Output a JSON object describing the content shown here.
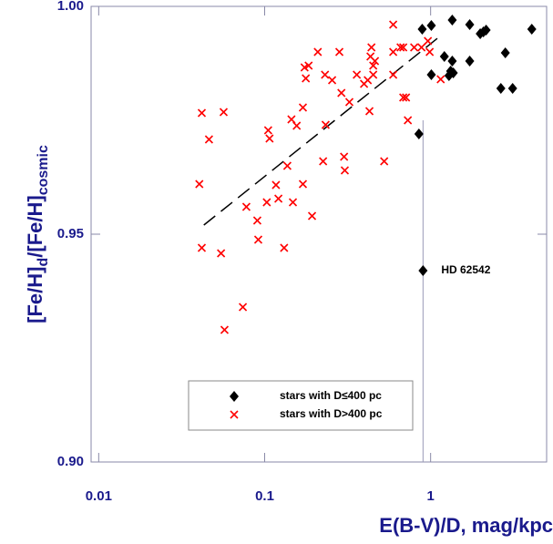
{
  "chart_data": {
    "type": "scatter",
    "x_label": "E(B-V)/D, mag/kpc",
    "y_label_parts": [
      "[Fe/H]",
      "d",
      "/[Fe/H]",
      "cosmic"
    ],
    "log_x": true,
    "xlim": [
      0.009,
      5
    ],
    "ylim": [
      0.9,
      1.0
    ],
    "xticks": [
      0.01,
      0.1,
      1
    ],
    "yticks": [
      {
        "value": 0.9,
        "label": "0.90"
      },
      {
        "value": 0.95,
        "label": "0.95"
      },
      {
        "value": 1.0,
        "label": "1.00"
      }
    ],
    "legend": "bottom-center",
    "series": [
      {
        "name": "stars with D≤400 pc",
        "color": "#000000",
        "marker": "diamond",
        "x": [
          0.89,
          1.35,
          1.72,
          1.99,
          2.08,
          2.16,
          1.21,
          1.35,
          1.32,
          1.37,
          1.29,
          1.01,
          1.72,
          2.65,
          3.12,
          2.82,
          4.07,
          0.85,
          0.9,
          1.01
        ],
        "y": [
          0.995,
          0.997,
          0.996,
          0.994,
          0.9944,
          0.9948,
          0.989,
          0.988,
          0.9858,
          0.9854,
          0.9848,
          0.985,
          0.988,
          0.982,
          0.982,
          0.9898,
          0.995,
          0.972,
          0.942,
          0.9958
        ]
      },
      {
        "name": "stars with D>400 pc",
        "color": "#ff0000",
        "marker": "x",
        "x": [
          0.0418,
          0.0566,
          0.0404,
          0.0418,
          0.0546,
          0.0462,
          0.0573,
          0.0739,
          0.0776,
          0.0903,
          0.0915,
          0.103,
          0.107,
          0.105,
          0.117,
          0.121,
          0.131,
          0.137,
          0.145,
          0.148,
          0.156,
          0.17,
          0.17,
          0.177,
          0.174,
          0.184,
          0.193,
          0.209,
          0.225,
          0.233,
          0.231,
          0.255,
          0.282,
          0.29,
          0.301,
          0.304,
          0.324,
          0.359,
          0.397,
          0.418,
          0.44,
          0.451,
          0.451,
          0.428,
          0.462,
          0.434,
          0.525,
          0.595,
          0.595,
          0.595,
          0.659,
          0.684,
          0.711,
          0.684,
          0.729,
          0.796,
          0.881,
          0.963,
          0.987,
          1.15
        ],
        "y": [
          0.9766,
          0.9768,
          0.961,
          0.947,
          0.9458,
          0.9708,
          0.929,
          0.934,
          0.956,
          0.953,
          0.9488,
          0.957,
          0.971,
          0.9728,
          0.9608,
          0.9578,
          0.947,
          0.965,
          0.9752,
          0.957,
          0.9738,
          0.961,
          0.9778,
          0.9842,
          0.9866,
          0.987,
          0.954,
          0.99,
          0.966,
          0.974,
          0.985,
          0.9838,
          0.99,
          0.981,
          0.967,
          0.964,
          0.979,
          0.985,
          0.983,
          0.9838,
          0.991,
          0.987,
          0.985,
          0.977,
          0.988,
          0.989,
          0.966,
          0.996,
          0.99,
          0.985,
          0.991,
          0.98,
          0.98,
          0.991,
          0.975,
          0.991,
          0.991,
          0.9924,
          0.99,
          0.984
        ]
      }
    ],
    "trend_line": {
      "x": [
        0.043,
        1.1
      ],
      "y": [
        0.952,
        0.993
      ]
    },
    "reference_line": {
      "x": 0.9,
      "y_top": 0.975
    },
    "annotation": {
      "text": "HD 62542",
      "x": 0.9,
      "y": 0.942
    }
  }
}
